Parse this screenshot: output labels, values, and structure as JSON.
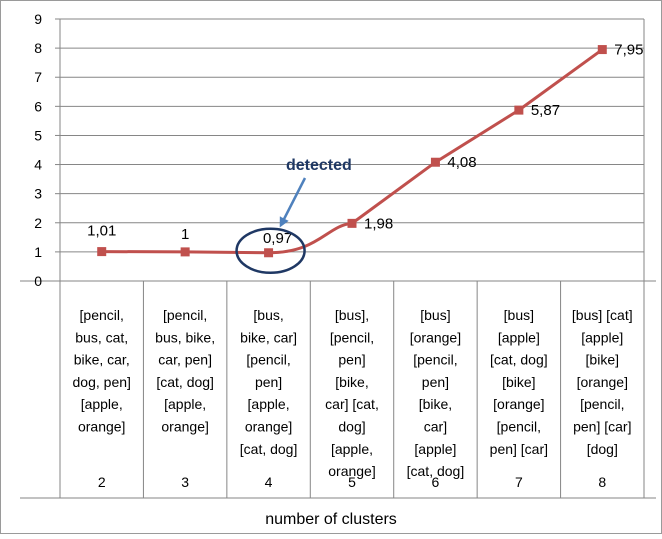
{
  "chart_data": {
    "type": "line",
    "categories": [
      "2",
      "3",
      "4",
      "5",
      "6",
      "7",
      "8"
    ],
    "values": [
      1.01,
      1,
      0.97,
      1.98,
      4.08,
      5.87,
      7.95
    ],
    "data_labels": [
      "1,01",
      "1",
      "0,97",
      "1,98",
      "4,08",
      "5,87",
      "7,95"
    ],
    "group_labels": [
      [
        "[pencil,",
        "bus, cat,",
        "bike, car,",
        "dog, pen]",
        "[apple,",
        "orange]"
      ],
      [
        "[pencil,",
        "bus, bike,",
        "car, pen]",
        "[cat, dog]",
        "[apple,",
        "orange]"
      ],
      [
        "[bus,",
        "bike, car]",
        "[pencil,",
        "pen]",
        "[apple,",
        "orange]",
        "[cat, dog]"
      ],
      [
        "[bus],",
        "[pencil,",
        "pen]",
        "[bike,",
        "car] [cat,",
        "dog]",
        "[apple,",
        "orange]"
      ],
      [
        "[bus]",
        "[orange]",
        "[pencil,",
        "pen]",
        "[bike,",
        "car]",
        "[apple]",
        "[cat, dog]"
      ],
      [
        "[bus]",
        "[apple]",
        "[cat, dog]",
        "[bike]",
        "[orange]",
        "[pencil,",
        "pen] [car]"
      ],
      [
        "[bus] [cat]",
        "[apple]",
        "[bike]",
        "[orange]",
        "[pencil,",
        "pen] [car]",
        "[dog]"
      ]
    ],
    "xlabel": "number of clusters",
    "ylabel": "",
    "ylim": [
      0,
      9
    ],
    "yticks": [
      "0",
      "1",
      "2",
      "3",
      "4",
      "5",
      "6",
      "7",
      "8",
      "9"
    ],
    "grid": true,
    "annotation": {
      "text": "detected",
      "target_index": 2
    },
    "colors": {
      "line": "#c0504d",
      "marker": "#c0504d",
      "grid": "#868686",
      "annotation": "#4f81bd",
      "ellipse": "#1f3864"
    }
  }
}
